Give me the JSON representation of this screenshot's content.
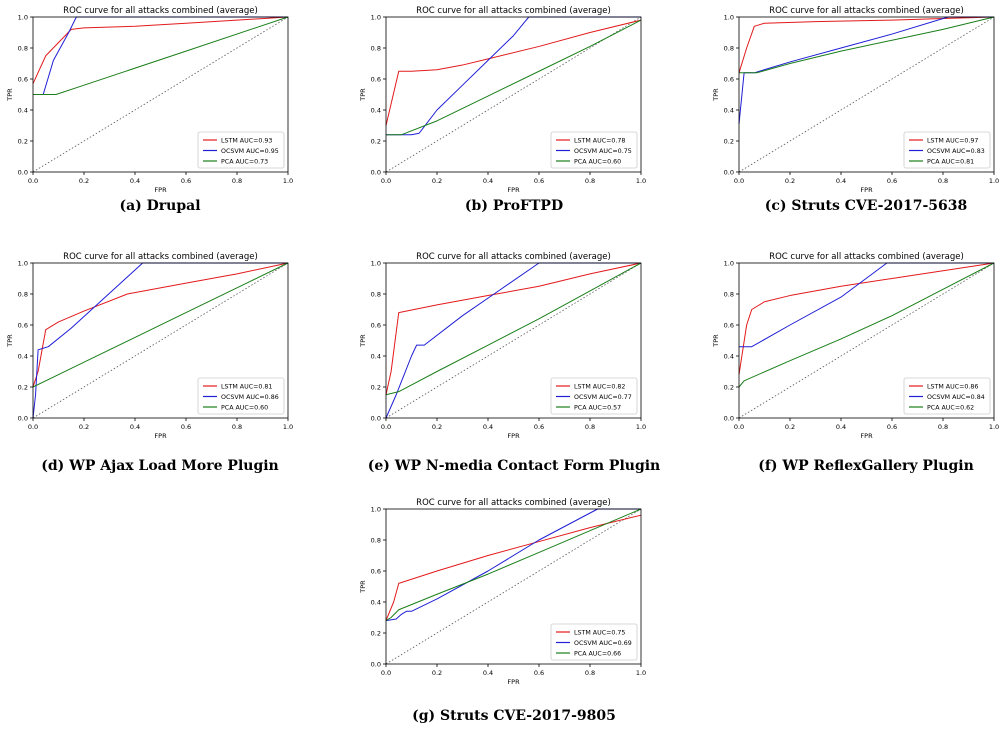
{
  "figure": {
    "captions": [
      "(a) Drupal",
      "(b) ProFTPD",
      "(c) Struts CVE-2017-5638",
      "(d) WP Ajax Load More Plugin",
      "(e) WP N-media Contact Form Plugin",
      "(f) WP ReflexGallery Plugin",
      "(g) Struts CVE-2017-9805"
    ]
  },
  "colors": {
    "lstm": "#e31a1c",
    "ocsvm": "#1f1fd6",
    "pca": "#1a7f1a",
    "diagonal": "#555555"
  },
  "chart_data": [
    {
      "type": "line",
      "title": "ROC curve for all attacks combined (average)",
      "xlabel": "FPR",
      "ylabel": "TPR",
      "xlim": [
        0,
        1
      ],
      "ylim": [
        0,
        1
      ],
      "xticks": [
        "0.0",
        "0.2",
        "0.4",
        "0.6",
        "0.8",
        "1.0"
      ],
      "yticks": [
        "0.0",
        "0.2",
        "0.4",
        "0.6",
        "0.8",
        "1.0"
      ],
      "legend": "bottom-right",
      "grid": false,
      "diagonal": true,
      "series": [
        {
          "name": "LSTM AUC=0.93",
          "color": "#e31a1c",
          "points": [
            [
              0,
              0.57
            ],
            [
              0.05,
              0.75
            ],
            [
              0.15,
              0.92
            ],
            [
              0.2,
              0.93
            ],
            [
              0.4,
              0.94
            ],
            [
              0.6,
              0.96
            ],
            [
              0.8,
              0.98
            ],
            [
              1,
              1
            ]
          ]
        },
        {
          "name": "OCSVM AUC=0.95",
          "color": "#1f1fd6",
          "points": [
            [
              0,
              0.5
            ],
            [
              0.04,
              0.5
            ],
            [
              0.08,
              0.72
            ],
            [
              0.14,
              0.9
            ],
            [
              0.17,
              1
            ],
            [
              1,
              1
            ]
          ]
        },
        {
          "name": "PCA AUC=0.73",
          "color": "#1a7f1a",
          "points": [
            [
              0,
              0.5
            ],
            [
              0.09,
              0.5
            ],
            [
              0.2,
              0.56
            ],
            [
              0.6,
              0.78
            ],
            [
              1,
              1
            ]
          ]
        }
      ]
    },
    {
      "type": "line",
      "title": "ROC curve for all attacks combined (average)",
      "xlabel": "FPR",
      "ylabel": "TPR",
      "xlim": [
        0,
        1
      ],
      "ylim": [
        0,
        1
      ],
      "xticks": [
        "0.0",
        "0.2",
        "0.4",
        "0.6",
        "0.8",
        "1.0"
      ],
      "yticks": [
        "0.0",
        "0.2",
        "0.4",
        "0.6",
        "0.8",
        "1.0"
      ],
      "legend": "bottom-right",
      "grid": false,
      "diagonal": true,
      "series": [
        {
          "name": "LSTM AUC=0.78",
          "color": "#e31a1c",
          "points": [
            [
              0,
              0.3
            ],
            [
              0.05,
              0.65
            ],
            [
              0.1,
              0.65
            ],
            [
              0.2,
              0.66
            ],
            [
              0.3,
              0.69
            ],
            [
              0.4,
              0.73
            ],
            [
              0.6,
              0.81
            ],
            [
              0.8,
              0.9
            ],
            [
              1,
              0.98
            ]
          ]
        },
        {
          "name": "OCSVM AUC=0.75",
          "color": "#1f1fd6",
          "points": [
            [
              0,
              0.24
            ],
            [
              0.1,
              0.24
            ],
            [
              0.13,
              0.25
            ],
            [
              0.2,
              0.4
            ],
            [
              0.3,
              0.56
            ],
            [
              0.4,
              0.72
            ],
            [
              0.5,
              0.88
            ],
            [
              0.55,
              0.98
            ],
            [
              0.56,
              1
            ],
            [
              1,
              1
            ]
          ]
        },
        {
          "name": "PCA AUC=0.60",
          "color": "#1a7f1a",
          "points": [
            [
              0,
              0.24
            ],
            [
              0.06,
              0.24
            ],
            [
              0.2,
              0.33
            ],
            [
              0.4,
              0.49
            ],
            [
              0.6,
              0.65
            ],
            [
              0.8,
              0.81
            ],
            [
              1,
              0.98
            ]
          ]
        }
      ]
    },
    {
      "type": "line",
      "title": "ROC curve for all attacks combined (average)",
      "xlabel": "FPR",
      "ylabel": "TPR",
      "xlim": [
        0,
        1
      ],
      "ylim": [
        0,
        1
      ],
      "xticks": [
        "0.0",
        "0.2",
        "0.4",
        "0.6",
        "0.8",
        "1.0"
      ],
      "yticks": [
        "0.0",
        "0.2",
        "0.4",
        "0.6",
        "0.8",
        "1.0"
      ],
      "legend": "bottom-right",
      "grid": false,
      "diagonal": true,
      "series": [
        {
          "name": "LSTM AUC=0.97",
          "color": "#e31a1c",
          "points": [
            [
              0,
              0.64
            ],
            [
              0.03,
              0.8
            ],
            [
              0.06,
              0.94
            ],
            [
              0.1,
              0.96
            ],
            [
              0.3,
              0.97
            ],
            [
              0.6,
              0.98
            ],
            [
              0.8,
              0.99
            ],
            [
              1,
              1
            ]
          ]
        },
        {
          "name": "OCSVM AUC=0.83",
          "color": "#1f1fd6",
          "points": [
            [
              0,
              0.31
            ],
            [
              0.02,
              0.64
            ],
            [
              0.06,
              0.64
            ],
            [
              0.2,
              0.71
            ],
            [
              0.4,
              0.8
            ],
            [
              0.6,
              0.89
            ],
            [
              0.82,
              1
            ],
            [
              1,
              1
            ]
          ]
        },
        {
          "name": "PCA AUC=0.81",
          "color": "#1a7f1a",
          "points": [
            [
              0,
              0.64
            ],
            [
              0.07,
              0.64
            ],
            [
              0.2,
              0.7
            ],
            [
              0.4,
              0.78
            ],
            [
              0.6,
              0.85
            ],
            [
              0.8,
              0.92
            ],
            [
              1,
              1
            ]
          ]
        }
      ]
    },
    {
      "type": "line",
      "title": "ROC curve for all attacks combined (average)",
      "xlabel": "FPR",
      "ylabel": "TPR",
      "xlim": [
        0,
        1
      ],
      "ylim": [
        0,
        1
      ],
      "xticks": [
        "0.0",
        "0.2",
        "0.4",
        "0.6",
        "0.8",
        "1.0"
      ],
      "yticks": [
        "0.0",
        "0.2",
        "0.4",
        "0.6",
        "0.8",
        "1.0"
      ],
      "legend": "bottom-right",
      "grid": false,
      "diagonal": true,
      "series": [
        {
          "name": "LSTM AUC=0.81",
          "color": "#e31a1c",
          "points": [
            [
              0,
              0.2
            ],
            [
              0.02,
              0.3
            ],
            [
              0.05,
              0.57
            ],
            [
              0.1,
              0.62
            ],
            [
              0.2,
              0.69
            ],
            [
              0.37,
              0.8
            ],
            [
              0.6,
              0.87
            ],
            [
              0.8,
              0.93
            ],
            [
              1,
              1
            ]
          ]
        },
        {
          "name": "OCSVM AUC=0.86",
          "color": "#1f1fd6",
          "points": [
            [
              0,
              0
            ],
            [
              0.01,
              0.15
            ],
            [
              0.02,
              0.44
            ],
            [
              0.04,
              0.45
            ],
            [
              0.06,
              0.46
            ],
            [
              0.15,
              0.58
            ],
            [
              0.25,
              0.73
            ],
            [
              0.35,
              0.88
            ],
            [
              0.43,
              1
            ],
            [
              1,
              1
            ]
          ]
        },
        {
          "name": "PCA AUC=0.60",
          "color": "#1a7f1a",
          "points": [
            [
              0,
              0.2
            ],
            [
              0.2,
              0.36
            ],
            [
              0.4,
              0.52
            ],
            [
              0.6,
              0.68
            ],
            [
              0.8,
              0.84
            ],
            [
              1,
              1
            ]
          ]
        }
      ]
    },
    {
      "type": "line",
      "title": "ROC curve for all attacks combined (average)",
      "xlabel": "FPR",
      "ylabel": "TPR",
      "xlim": [
        0,
        1
      ],
      "ylim": [
        0,
        1
      ],
      "xticks": [
        "0.0",
        "0.2",
        "0.4",
        "0.6",
        "0.8",
        "1.0"
      ],
      "yticks": [
        "0.0",
        "0.2",
        "0.4",
        "0.6",
        "0.8",
        "1.0"
      ],
      "legend": "bottom-right",
      "grid": false,
      "diagonal": true,
      "series": [
        {
          "name": "LSTM AUC=0.82",
          "color": "#e31a1c",
          "points": [
            [
              0,
              0.15
            ],
            [
              0.02,
              0.3
            ],
            [
              0.05,
              0.68
            ],
            [
              0.2,
              0.73
            ],
            [
              0.4,
              0.79
            ],
            [
              0.6,
              0.85
            ],
            [
              0.8,
              0.93
            ],
            [
              1,
              1
            ]
          ]
        },
        {
          "name": "OCSVM AUC=0.77",
          "color": "#1f1fd6",
          "points": [
            [
              0,
              0
            ],
            [
              0.04,
              0.15
            ],
            [
              0.1,
              0.4
            ],
            [
              0.12,
              0.47
            ],
            [
              0.15,
              0.47
            ],
            [
              0.3,
              0.66
            ],
            [
              0.45,
              0.83
            ],
            [
              0.6,
              1
            ],
            [
              1,
              1
            ]
          ]
        },
        {
          "name": "PCA AUC=0.57",
          "color": "#1a7f1a",
          "points": [
            [
              0,
              0.15
            ],
            [
              0.05,
              0.17
            ],
            [
              0.2,
              0.3
            ],
            [
              0.4,
              0.47
            ],
            [
              0.6,
              0.64
            ],
            [
              0.8,
              0.82
            ],
            [
              1,
              1
            ]
          ]
        }
      ]
    },
    {
      "type": "line",
      "title": "ROC curve for all attacks combined (average)",
      "xlabel": "FPR",
      "ylabel": "TPR",
      "xlim": [
        0,
        1
      ],
      "ylim": [
        0,
        1
      ],
      "xticks": [
        "0.0",
        "0.2",
        "0.4",
        "0.6",
        "0.8",
        "1.0"
      ],
      "yticks": [
        "0.0",
        "0.2",
        "0.4",
        "0.6",
        "0.8",
        "1.0"
      ],
      "legend": "bottom-right",
      "grid": false,
      "diagonal": true,
      "series": [
        {
          "name": "LSTM AUC=0.86",
          "color": "#e31a1c",
          "points": [
            [
              0,
              0.28
            ],
            [
              0.03,
              0.6
            ],
            [
              0.05,
              0.7
            ],
            [
              0.1,
              0.75
            ],
            [
              0.2,
              0.79
            ],
            [
              0.4,
              0.85
            ],
            [
              0.6,
              0.9
            ],
            [
              0.8,
              0.95
            ],
            [
              1,
              1
            ]
          ]
        },
        {
          "name": "OCSVM AUC=0.84",
          "color": "#1f1fd6",
          "points": [
            [
              0,
              0.46
            ],
            [
              0.05,
              0.46
            ],
            [
              0.2,
              0.6
            ],
            [
              0.4,
              0.78
            ],
            [
              0.58,
              1
            ],
            [
              1,
              1
            ]
          ]
        },
        {
          "name": "PCA AUC=0.62",
          "color": "#1a7f1a",
          "points": [
            [
              0,
              0.2
            ],
            [
              0.02,
              0.24
            ],
            [
              0.2,
              0.37
            ],
            [
              0.4,
              0.51
            ],
            [
              0.6,
              0.66
            ],
            [
              0.8,
              0.83
            ],
            [
              1,
              1
            ]
          ]
        }
      ]
    },
    {
      "type": "line",
      "title": "ROC curve for all attacks combined (average)",
      "xlabel": "FPR",
      "ylabel": "TPR",
      "xlim": [
        0,
        1
      ],
      "ylim": [
        0,
        1
      ],
      "xticks": [
        "0.0",
        "0.2",
        "0.4",
        "0.6",
        "0.8",
        "1.0"
      ],
      "yticks": [
        "0.0",
        "0.2",
        "0.4",
        "0.6",
        "0.8",
        "1.0"
      ],
      "legend": "bottom-right",
      "grid": false,
      "diagonal": true,
      "series": [
        {
          "name": "LSTM AUC=0.75",
          "color": "#e31a1c",
          "points": [
            [
              0,
              0.28
            ],
            [
              0.03,
              0.4
            ],
            [
              0.05,
              0.52
            ],
            [
              0.2,
              0.6
            ],
            [
              0.4,
              0.7
            ],
            [
              0.6,
              0.79
            ],
            [
              0.8,
              0.88
            ],
            [
              1,
              0.96
            ]
          ]
        },
        {
          "name": "OCSVM AUC=0.69",
          "color": "#1f1fd6",
          "points": [
            [
              0,
              0.28
            ],
            [
              0.04,
              0.29
            ],
            [
              0.06,
              0.32
            ],
            [
              0.08,
              0.34
            ],
            [
              0.1,
              0.34
            ],
            [
              0.2,
              0.42
            ],
            [
              0.4,
              0.6
            ],
            [
              0.6,
              0.8
            ],
            [
              0.83,
              1
            ],
            [
              1,
              1
            ]
          ]
        },
        {
          "name": "PCA AUC=0.66",
          "color": "#1a7f1a",
          "points": [
            [
              0,
              0.28
            ],
            [
              0.02,
              0.3
            ],
            [
              0.05,
              0.35
            ],
            [
              0.2,
              0.45
            ],
            [
              0.4,
              0.58
            ],
            [
              0.6,
              0.72
            ],
            [
              0.8,
              0.86
            ],
            [
              1,
              1
            ]
          ]
        }
      ]
    }
  ]
}
